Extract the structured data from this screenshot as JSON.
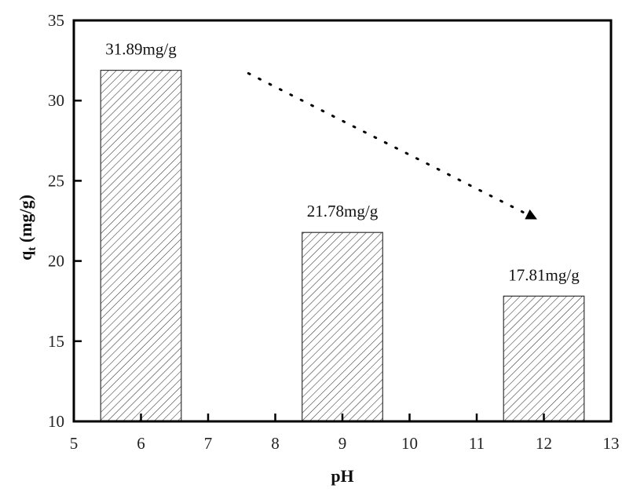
{
  "chart_data": {
    "type": "bar",
    "title": "",
    "xlabel": "pH",
    "ylabel": "q_t (mg/g)",
    "ylabel_main": "q",
    "ylabel_sub": "t",
    "ylabel_unit": " (mg/g)",
    "categories": [
      6,
      9,
      12
    ],
    "values": [
      31.89,
      21.78,
      17.81
    ],
    "bar_labels": [
      "31.89mg/g",
      "21.78mg/g",
      "17.81mg/g"
    ],
    "bar_width": 1.2,
    "bar_fill": "diagonal hatch",
    "xlim": [
      5,
      13
    ],
    "ylim": [
      10,
      35
    ],
    "xticks": [
      5,
      6,
      7,
      8,
      9,
      10,
      11,
      12,
      13
    ],
    "yticks": [
      10,
      15,
      20,
      25,
      30,
      35
    ],
    "grid": false,
    "legend": null,
    "annotations": [
      {
        "type": "dotted-arrow",
        "from": [
          7.6,
          31.7
        ],
        "to": [
          11.9,
          22.6
        ],
        "meaning": "decreasing trend"
      }
    ]
  }
}
